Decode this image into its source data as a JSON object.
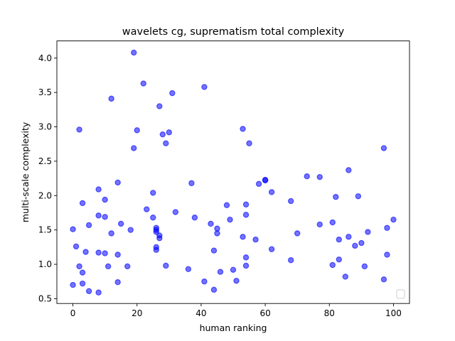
{
  "chart_data": {
    "type": "scatter",
    "title": "wavelets cg, suprematism total complexity",
    "xlabel": "human ranking",
    "ylabel": "multi-scale complexity",
    "xlim": [
      -5,
      105
    ],
    "ylim": [
      0.43,
      4.25
    ],
    "xticks": [
      0,
      20,
      40,
      60,
      80,
      100
    ],
    "yticks": [
      0.5,
      1.0,
      1.5,
      2.0,
      2.5,
      3.0,
      3.5,
      4.0
    ],
    "xtick_labels": [
      "0",
      "20",
      "40",
      "60",
      "80",
      "100"
    ],
    "ytick_labels": [
      "0.5",
      "1.0",
      "1.5",
      "2.0",
      "2.5",
      "3.0",
      "3.5",
      "4.0"
    ],
    "grid": false,
    "legend": {
      "placement": "lower-right",
      "entries": []
    },
    "color": "#0000ff",
    "points": [
      [
        0,
        1.51
      ],
      [
        0,
        0.7
      ],
      [
        1,
        1.26
      ],
      [
        2,
        2.96
      ],
      [
        2,
        0.97
      ],
      [
        3,
        1.89
      ],
      [
        3,
        0.88
      ],
      [
        3,
        0.72
      ],
      [
        4,
        1.18
      ],
      [
        5,
        1.57
      ],
      [
        5,
        0.61
      ],
      [
        8,
        2.09
      ],
      [
        8,
        1.71
      ],
      [
        8,
        1.17
      ],
      [
        8,
        0.59
      ],
      [
        10,
        1.94
      ],
      [
        10,
        1.69
      ],
      [
        10,
        1.16
      ],
      [
        11,
        0.97
      ],
      [
        12,
        3.41
      ],
      [
        12,
        1.45
      ],
      [
        14,
        2.19
      ],
      [
        14,
        1.14
      ],
      [
        14,
        0.74
      ],
      [
        15,
        1.59
      ],
      [
        17,
        0.97
      ],
      [
        18,
        1.5
      ],
      [
        19,
        4.08
      ],
      [
        19,
        2.69
      ],
      [
        20,
        2.95
      ],
      [
        22,
        3.63
      ],
      [
        23,
        1.8
      ],
      [
        25,
        2.04
      ],
      [
        25,
        1.68
      ],
      [
        26,
        1.53
      ],
      [
        26,
        1.5
      ],
      [
        26,
        1.47
      ],
      [
        26,
        1.25
      ],
      [
        26,
        1.21
      ],
      [
        27,
        3.3
      ],
      [
        27,
        1.42
      ],
      [
        27,
        1.38
      ],
      [
        28,
        2.89
      ],
      [
        29,
        2.76
      ],
      [
        29,
        0.98
      ],
      [
        30,
        2.92
      ],
      [
        31,
        3.49
      ],
      [
        32,
        1.76
      ],
      [
        36,
        0.93
      ],
      [
        37,
        2.18
      ],
      [
        38,
        1.68
      ],
      [
        41,
        3.58
      ],
      [
        41,
        0.75
      ],
      [
        43,
        1.59
      ],
      [
        44,
        1.2
      ],
      [
        44,
        0.63
      ],
      [
        45,
        1.52
      ],
      [
        45,
        1.45
      ],
      [
        46,
        0.89
      ],
      [
        48,
        1.86
      ],
      [
        49,
        1.65
      ],
      [
        50,
        0.92
      ],
      [
        51,
        0.76
      ],
      [
        53,
        2.97
      ],
      [
        53,
        1.4
      ],
      [
        54,
        1.87
      ],
      [
        54,
        1.72
      ],
      [
        54,
        1.1
      ],
      [
        54,
        0.98
      ],
      [
        55,
        2.76
      ],
      [
        57,
        1.36
      ],
      [
        58,
        2.17
      ],
      [
        60,
        2.23
      ],
      [
        60,
        2.22
      ],
      [
        62,
        2.05
      ],
      [
        62,
        1.22
      ],
      [
        68,
        1.92
      ],
      [
        68,
        1.06
      ],
      [
        70,
        1.45
      ],
      [
        73,
        2.28
      ],
      [
        77,
        2.27
      ],
      [
        77,
        1.58
      ],
      [
        81,
        1.61
      ],
      [
        81,
        0.99
      ],
      [
        82,
        1.98
      ],
      [
        83,
        1.36
      ],
      [
        83,
        1.07
      ],
      [
        85,
        0.82
      ],
      [
        86,
        2.37
      ],
      [
        86,
        1.4
      ],
      [
        88,
        1.27
      ],
      [
        89,
        1.99
      ],
      [
        90,
        1.31
      ],
      [
        91,
        0.97
      ],
      [
        92,
        1.47
      ],
      [
        97,
        2.69
      ],
      [
        97,
        0.78
      ],
      [
        98,
        1.53
      ],
      [
        98,
        1.14
      ],
      [
        100,
        1.65
      ]
    ]
  }
}
